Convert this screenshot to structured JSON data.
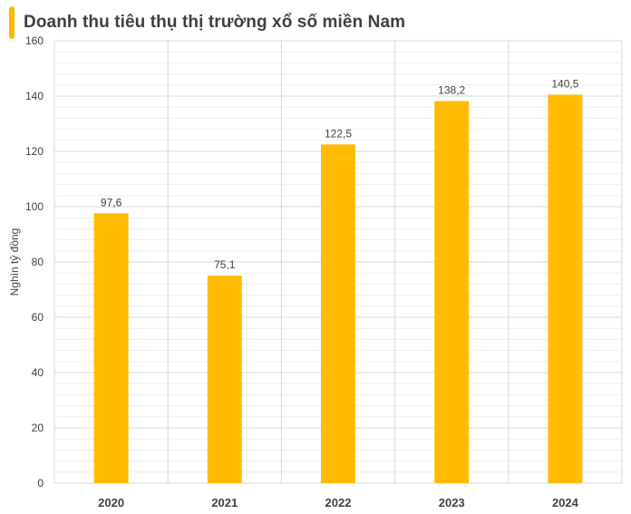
{
  "colors": {
    "accent": "#FFB800",
    "bar": "#FFBC00",
    "grid_major": "#d9d9d9",
    "grid_minor": "#eeeeee",
    "text": "#404040"
  },
  "chart_data": {
    "type": "bar",
    "title": "Doanh thu tiêu thụ thị trường xổ số miền Nam",
    "xlabel": "",
    "ylabel": "Nghìn tỷ đồng",
    "categories": [
      "2020",
      "2021",
      "2022",
      "2023",
      "2024"
    ],
    "values": [
      97.6,
      75.1,
      122.5,
      138.2,
      140.5
    ],
    "value_labels": [
      "97,6",
      "75,1",
      "122,5",
      "138,2",
      "140,5"
    ],
    "ylim": [
      0,
      160
    ],
    "yticks": [
      0,
      20,
      40,
      60,
      80,
      100,
      120,
      140,
      160
    ],
    "grid": true,
    "legend": "none"
  }
}
